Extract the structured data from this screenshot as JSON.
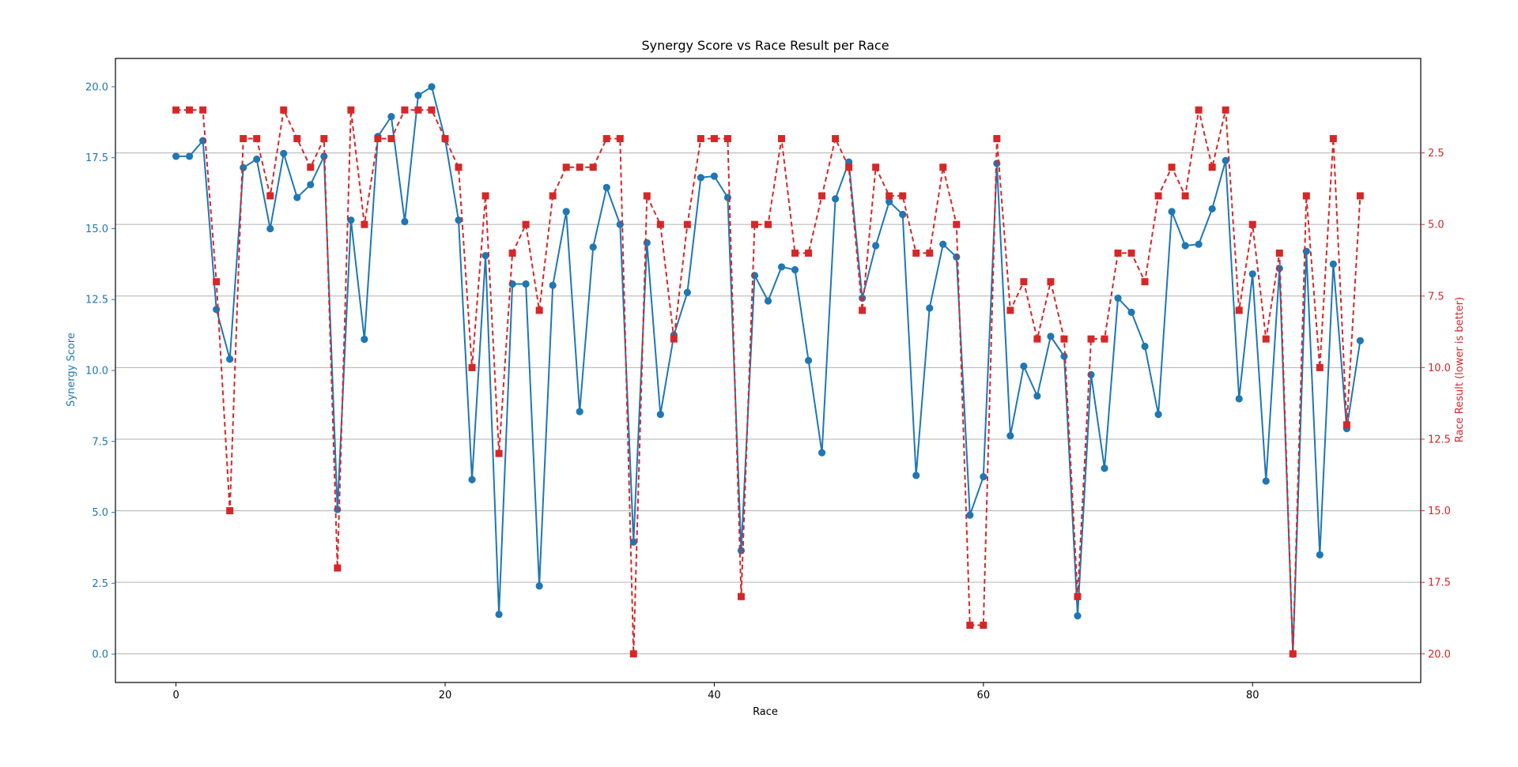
{
  "colors": {
    "series1": "#1f77b4",
    "series2": "#d62728",
    "grid": "#b0b0b0",
    "axis": "#000000"
  },
  "chart_data": {
    "type": "line",
    "title": "Synergy Score vs Race Result per Race",
    "xlabel": "Race",
    "ylabel_left": "Synergy Score",
    "ylabel_right": "Race Result (lower is better)",
    "xlim": [
      -4.5,
      92.5
    ],
    "ylim_left": [
      -1.0,
      21.0
    ],
    "ylim_right": [
      21.0,
      -0.8
    ],
    "right_axis_inverted": true,
    "grid": "horizontal (right axis)",
    "x_ticks": [
      0,
      20,
      40,
      60,
      80
    ],
    "y_ticks_left": [
      "0.0",
      "2.5",
      "5.0",
      "7.5",
      "10.0",
      "12.5",
      "15.0",
      "17.5",
      "20.0"
    ],
    "y_ticks_right": [
      "2.5",
      "5.0",
      "7.5",
      "10.0",
      "12.5",
      "15.0",
      "17.5",
      "20.0"
    ],
    "x": [
      0,
      1,
      2,
      3,
      4,
      5,
      6,
      7,
      8,
      9,
      10,
      11,
      12,
      13,
      14,
      15,
      16,
      17,
      18,
      19,
      20,
      21,
      22,
      23,
      24,
      25,
      26,
      27,
      28,
      29,
      30,
      31,
      32,
      33,
      34,
      35,
      36,
      37,
      38,
      39,
      40,
      41,
      42,
      43,
      44,
      45,
      46,
      47,
      48,
      49,
      50,
      51,
      52,
      53,
      54,
      55,
      56,
      57,
      58,
      59,
      60,
      61,
      62,
      63,
      64,
      65,
      66,
      67,
      68,
      69,
      70,
      71,
      72,
      73,
      74,
      75,
      76,
      77,
      78,
      79,
      80,
      81,
      82,
      83,
      84,
      85,
      86,
      87,
      88
    ],
    "series": [
      {
        "axis": "left",
        "marker": "circle",
        "linestyle": "solid",
        "values": [
          17.55,
          17.55,
          18.1,
          12.15,
          10.4,
          17.15,
          17.45,
          15.0,
          17.65,
          16.1,
          16.55,
          17.55,
          5.1,
          15.3,
          11.1,
          18.25,
          18.95,
          15.25,
          19.7,
          20.0,
          18.15,
          15.3,
          6.15,
          14.05,
          1.4,
          13.05,
          13.05,
          2.4,
          13.0,
          15.6,
          8.55,
          14.35,
          16.45,
          15.15,
          3.95,
          14.5,
          8.45,
          11.25,
          12.75,
          16.8,
          16.85,
          16.1,
          3.65,
          13.35,
          12.45,
          13.65,
          13.55,
          10.35,
          7.1,
          16.05,
          17.35,
          12.55,
          14.4,
          15.95,
          15.5,
          6.3,
          12.2,
          14.45,
          14.0,
          4.9,
          6.25,
          17.3,
          7.7,
          10.15,
          9.1,
          11.2,
          10.5,
          1.35,
          9.85,
          6.55,
          12.55,
          12.05,
          10.85,
          8.45,
          15.6,
          14.4,
          14.45,
          15.7,
          17.4,
          9.0,
          13.4,
          6.1,
          13.6,
          0.0,
          14.2,
          3.5,
          13.75,
          7.95,
          11.05
        ]
      },
      {
        "axis": "right",
        "marker": "square",
        "linestyle": "dashed",
        "values": [
          1,
          1,
          1,
          7,
          15,
          2,
          2,
          4,
          1,
          2,
          3,
          2,
          17,
          1,
          5,
          2,
          2,
          1,
          1,
          1,
          2,
          3,
          10,
          4,
          13,
          6,
          5,
          8,
          4,
          3,
          3,
          3,
          2,
          2,
          20,
          4,
          5,
          9,
          5,
          2,
          2,
          2,
          18,
          5,
          5,
          2,
          6,
          6,
          4,
          2,
          3,
          8,
          3,
          4,
          4,
          6,
          6,
          3,
          5,
          19,
          19,
          2,
          8,
          7,
          9,
          7,
          9,
          18,
          9,
          9,
          6,
          6,
          7,
          4,
          3,
          4,
          1,
          3,
          1,
          8,
          5,
          9,
          6,
          20,
          4,
          10,
          2,
          12,
          4
        ]
      }
    ]
  }
}
